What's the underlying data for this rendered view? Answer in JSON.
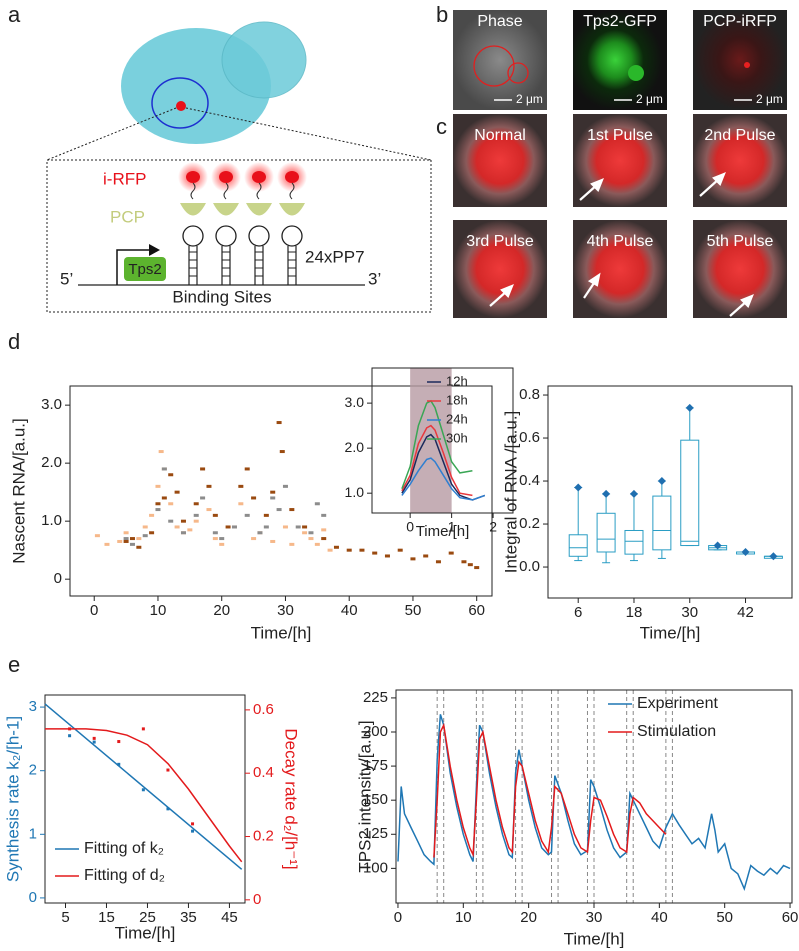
{
  "panel_labels": [
    "a",
    "b",
    "c",
    "d",
    "e"
  ],
  "diagram": {
    "reporter": "i-RFP",
    "coat_protein": "PCP",
    "gene": "Tps2",
    "repeats": "24xPP7",
    "five_prime": "5’",
    "three_prime": "3’",
    "binding_sites": "Binding Sites"
  },
  "microscopy": {
    "b": [
      {
        "title": "Phase",
        "scale_bar": "2 μm"
      },
      {
        "title": "Tps2-GFP",
        "scale_bar": "2 μm"
      },
      {
        "title": "PCP-iRFP",
        "scale_bar": "2 μm"
      }
    ],
    "c": [
      "Normal",
      "1st Pulse",
      "2nd Pulse",
      "3rd Pulse",
      "4th Pulse",
      "5th Pulse"
    ]
  },
  "chart_data": [
    {
      "type": "scatter",
      "xlabel": "Time/[h]",
      "ylabel": "Nascent RNA/[a.u.]",
      "xlim": [
        -3.8,
        62.4
      ],
      "xticks": [
        0,
        10,
        20,
        30,
        40,
        50,
        60
      ],
      "ylim": [
        -0.29,
        3.33
      ],
      "yticks": [
        0,
        {
          "value": 1,
          "label": "1.0"
        },
        {
          "value": 2,
          "label": "2.0"
        },
        {
          "value": 3,
          "label": "3.0"
        }
      ],
      "series": [
        {
          "color": "#f6b88a",
          "x": [
            0.5,
            2,
            4,
            5,
            7,
            8,
            9,
            10,
            10.5,
            11,
            12,
            13,
            14,
            15,
            16,
            18,
            19,
            20,
            22,
            23,
            25,
            26,
            28,
            30,
            31,
            33,
            34,
            35,
            36,
            37
          ],
          "values": [
            0.75,
            0.6,
            0.65,
            0.8,
            0.7,
            0.9,
            1.1,
            1.6,
            2.2,
            1.9,
            1.3,
            0.9,
            0.8,
            0.85,
            1.0,
            1.2,
            0.7,
            0.6,
            0.9,
            1.3,
            0.7,
            0.8,
            0.65,
            0.9,
            0.6,
            0.8,
            0.7,
            0.6,
            0.85,
            0.5
          ]
        },
        {
          "color": "#8c8c8c",
          "x": [
            5,
            6,
            8,
            10,
            11,
            12,
            14,
            16,
            17,
            19,
            20,
            22,
            24,
            26,
            27,
            28,
            29,
            30,
            32,
            34,
            35,
            36
          ],
          "values": [
            0.7,
            0.6,
            0.75,
            1.2,
            1.9,
            1.0,
            0.8,
            1.1,
            1.4,
            0.8,
            0.7,
            0.9,
            1.1,
            0.8,
            0.9,
            1.4,
            1.2,
            1.6,
            0.9,
            0.8,
            1.3,
            1.1
          ]
        },
        {
          "color": "#9a4a10",
          "x": [
            5,
            6,
            7,
            9,
            10,
            11,
            12,
            13,
            14,
            16,
            17,
            18,
            19,
            21,
            23,
            24,
            25,
            27,
            28,
            29,
            29.5,
            31,
            33,
            36,
            38,
            40,
            42,
            44,
            46,
            48,
            50,
            52,
            54,
            56,
            58,
            59,
            60
          ],
          "values": [
            0.65,
            0.7,
            0.55,
            0.8,
            1.3,
            1.4,
            1.8,
            1.5,
            1.0,
            1.3,
            1.9,
            1.6,
            1.1,
            0.9,
            1.6,
            1.9,
            1.4,
            1.1,
            1.5,
            2.7,
            2.2,
            1.2,
            0.9,
            0.7,
            0.55,
            0.5,
            0.5,
            0.45,
            0.4,
            0.5,
            0.35,
            0.4,
            0.3,
            0.45,
            0.3,
            0.25,
            0.2
          ]
        }
      ]
    },
    {
      "type": "line",
      "xlabel": "Time/[h]",
      "xlim": [
        -0.92,
        2.48
      ],
      "xticks": [
        0,
        1,
        2
      ],
      "ylim": [
        0.56,
        3.78
      ],
      "yticks": [
        {
          "value": 1,
          "label": "1.0"
        },
        {
          "value": 2,
          "label": "2.0"
        },
        {
          "value": 3,
          "label": "3.0"
        }
      ],
      "shade": [
        0,
        1
      ],
      "shade_color": "#b79aa3",
      "legend": "upper right",
      "series": [
        {
          "name": "12h",
          "color": "#1b2a5c",
          "x": [
            -0.2,
            0,
            0.2,
            0.4,
            0.5,
            0.6,
            0.8,
            1.0,
            1.2,
            1.5,
            1.8
          ],
          "values": [
            1.0,
            1.3,
            1.9,
            2.25,
            2.3,
            2.2,
            1.7,
            1.2,
            0.95,
            0.85,
            0.95
          ]
        },
        {
          "name": "18h",
          "color": "#e8383d",
          "x": [
            -0.2,
            0,
            0.2,
            0.4,
            0.5,
            0.6,
            0.8,
            1.0,
            1.2,
            1.5,
            1.8
          ],
          "values": [
            1.05,
            1.4,
            2.1,
            2.45,
            2.5,
            2.4,
            1.9,
            1.35,
            1.0,
            0.95,
            null
          ]
        },
        {
          "name": "24h",
          "color": "#2f7fd1",
          "x": [
            -0.2,
            0,
            0.2,
            0.4,
            0.5,
            0.6,
            0.8,
            1.0,
            1.2,
            1.5,
            1.8
          ],
          "values": [
            0.95,
            1.2,
            1.5,
            1.75,
            1.78,
            1.7,
            1.4,
            1.1,
            0.9,
            0.85,
            0.95
          ]
        },
        {
          "name": "30h",
          "color": "#3aa655",
          "x": [
            -0.2,
            0,
            0.2,
            0.4,
            0.5,
            0.6,
            0.8,
            1.0,
            1.2,
            1.5,
            1.8
          ],
          "values": [
            1.1,
            1.6,
            2.5,
            3.0,
            3.05,
            2.9,
            2.3,
            1.7,
            1.45,
            1.5,
            null
          ]
        }
      ]
    },
    {
      "type": "box",
      "xlabel": "Time/[h]",
      "ylabel": "Integral of RNA /[a.u.]",
      "xlim": [
        -0.5,
        52
      ],
      "xticks": [
        6,
        18,
        30,
        42
      ],
      "ylim": [
        -0.144,
        0.842
      ],
      "yticks": [
        {
          "value": 0,
          "label": "0.0"
        },
        0.2,
        0.4,
        0.6,
        0.8
      ],
      "series": [
        {
          "color": "#2a9dc4",
          "x": [
            6,
            12,
            18,
            24,
            30,
            36,
            42,
            48
          ],
          "whislo": [
            0.03,
            0.02,
            0.03,
            0.04,
            0.1,
            0.08,
            0.07,
            0.05
          ],
          "q1": [
            0.05,
            0.07,
            0.06,
            0.08,
            0.1,
            0.08,
            0.07,
            0.05
          ],
          "median": [
            0.09,
            0.13,
            0.12,
            0.17,
            0.12,
            0.09,
            0.07,
            0.05
          ],
          "q3": [
            0.15,
            0.25,
            0.17,
            0.33,
            0.59,
            0.1,
            0.07,
            0.05
          ],
          "whishi": [
            0.37,
            0.34,
            0.34,
            0.4,
            0.74,
            0.1,
            0.07,
            0.05
          ]
        }
      ]
    },
    {
      "type": "dual",
      "xlabel": "Time/[h]",
      "ylabel": "Synthesis rate k₂/[h-1]",
      "y2label": "Decay rate d₂/[h⁻¹]",
      "xlim": [
        0,
        48.8
      ],
      "xticks": [
        5,
        15,
        25,
        35,
        45
      ],
      "ylim": [
        -0.08,
        3.19
      ],
      "yticks": [
        0,
        1,
        2,
        3
      ],
      "y2lim": [
        -0.01,
        0.647
      ],
      "y2ticks": [
        0,
        0.2,
        0.4,
        0.6
      ],
      "ycolor": "#1f77b4",
      "y2color": "#e31a1c",
      "legend": "lower left",
      "series": [
        {
          "mode": "markers",
          "color": "#1f77b4",
          "x": [
            6,
            12,
            18,
            24,
            30,
            36
          ],
          "values": [
            2.55,
            2.45,
            2.1,
            1.7,
            1.4,
            1.05
          ]
        },
        {
          "mode": "markers",
          "color": "#e31a1c",
          "axis": "y2",
          "x": [
            6,
            12,
            18,
            24,
            30,
            36
          ],
          "values": [
            0.54,
            0.51,
            0.5,
            0.54,
            0.41,
            0.24
          ]
        },
        {
          "name": "Fitting of k₂",
          "mode": "lines",
          "color": "#1f77b4",
          "x": [
            0,
            48
          ],
          "values": [
            3.05,
            0.45
          ]
        },
        {
          "name": "Fitting of d₂",
          "mode": "lines",
          "color": "#e31a1c",
          "axis": "y2",
          "x": [
            0,
            5,
            10,
            15,
            20,
            25,
            30,
            35,
            40,
            45,
            48
          ],
          "values": [
            0.54,
            0.54,
            0.54,
            0.535,
            0.52,
            0.49,
            0.43,
            0.35,
            0.26,
            0.17,
            0.12
          ]
        }
      ]
    },
    {
      "type": "line",
      "xlabel": "Time/[h]",
      "ylabel": "TPS2 intensity/[a.u.]",
      "xlim": [
        -0.3,
        60.3
      ],
      "xticks": [
        0,
        10,
        20,
        30,
        40,
        50,
        60
      ],
      "ylim": [
        74.6,
        230.8
      ],
      "yticks": [
        100,
        125,
        150,
        175,
        200,
        225
      ],
      "vlines": [
        6,
        7,
        12,
        13,
        18,
        19,
        23.5,
        24.5,
        29,
        30,
        35,
        36,
        41,
        42
      ],
      "legend": "upper right",
      "series": [
        {
          "name": "Experiment",
          "color": "#1f77b4",
          "x": [
            0,
            0.5,
            1,
            2,
            3,
            4,
            5,
            5.5,
            6,
            6.5,
            7,
            8,
            9,
            10,
            11,
            11.5,
            12,
            12.5,
            13,
            14,
            15,
            16,
            17,
            17.5,
            18,
            18.5,
            19,
            20,
            21,
            22,
            23,
            23.5,
            24,
            25,
            26,
            27,
            28,
            29,
            29.5,
            30,
            31,
            32,
            33,
            34,
            35,
            35.5,
            36,
            37,
            38,
            39,
            40,
            41,
            42,
            43,
            44,
            45,
            46,
            47,
            48,
            48.5,
            49,
            50,
            51,
            52,
            53,
            54,
            55,
            56,
            57,
            58,
            59,
            60
          ],
          "values": [
            105,
            160,
            140,
            130,
            120,
            110,
            105,
            103,
            180,
            213,
            205,
            170,
            145,
            125,
            110,
            105,
            160,
            205,
            200,
            170,
            145,
            125,
            110,
            108,
            170,
            187,
            175,
            150,
            130,
            115,
            110,
            112,
            168,
            155,
            135,
            118,
            110,
            113,
            165,
            160,
            145,
            128,
            115,
            108,
            112,
            155,
            150,
            140,
            130,
            120,
            115,
            130,
            140,
            132,
            125,
            118,
            122,
            115,
            140,
            128,
            112,
            118,
            100,
            96,
            85,
            102,
            98,
            95,
            100,
            96,
            102,
            100
          ]
        },
        {
          "name": "Stimulation",
          "color": "#e31a1c",
          "x": [
            5.5,
            6,
            6.5,
            7,
            8,
            9,
            10,
            11,
            11.5,
            12,
            12.5,
            13,
            14,
            15,
            16,
            17,
            17.5,
            18,
            18.5,
            19,
            20,
            21,
            22,
            23,
            23.5,
            24,
            25,
            26,
            27,
            28,
            29,
            29.5,
            30,
            31,
            32,
            33,
            34,
            35,
            35.5,
            36,
            37,
            38,
            39,
            40,
            41
          ],
          "values": [
            108,
            150,
            200,
            205,
            175,
            150,
            130,
            115,
            110,
            150,
            195,
            200,
            175,
            150,
            130,
            115,
            112,
            160,
            178,
            175,
            155,
            135,
            120,
            112,
            130,
            160,
            155,
            140,
            125,
            115,
            112,
            135,
            152,
            150,
            138,
            125,
            115,
            112,
            140,
            152,
            148,
            140,
            135,
            130,
            125
          ]
        }
      ]
    }
  ]
}
